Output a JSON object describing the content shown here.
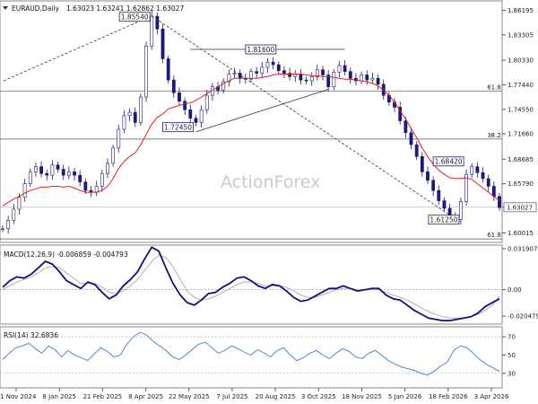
{
  "chart_data": [
    {
      "type": "candlestick",
      "panel": "price",
      "title": "EURAUD,Daily",
      "ohlc_readout": "1.63023 1.63241 1.62862 1.63027",
      "watermark": "ActionForex",
      "current_price": "1.63027",
      "ylim": [
        1.59,
        1.872
      ],
      "yticks": [
        "1.86195",
        "1.83305",
        "1.80330",
        "1.77440",
        "1.74550",
        "1.71660",
        "1.68685",
        "1.65790",
        "1.63027",
        "1.60015"
      ],
      "xticks": [
        "21 Nov 2024",
        "8 Jan 2025",
        "21 Feb 2025",
        "8 Apr 2025",
        "22 May 2025",
        "7 Jul 2025",
        "20 Aug 2025",
        "3 Oct 2025",
        "18 Nov 2025",
        "5 Jan 2026",
        "18 Feb 2026",
        "3 Apr 2026"
      ],
      "key_levels": [
        {
          "label": "1.85540",
          "value": 1.8554
        },
        {
          "label": "1.81600",
          "value": 1.816
        },
        {
          "label": "1.72450",
          "value": 1.7245
        },
        {
          "label": "1.68420",
          "value": 1.6842
        },
        {
          "label": "1.61250",
          "value": 1.6125
        }
      ],
      "fib_levels": [
        {
          "label": "61.8",
          "value": 1.767
        },
        {
          "label": "38.2",
          "value": 1.7105
        },
        {
          "label": "61.8",
          "value": 1.593
        }
      ],
      "close_series": [
        1.605,
        1.615,
        1.628,
        1.642,
        1.658,
        1.672,
        1.678,
        1.67,
        1.668,
        1.68,
        1.675,
        1.668,
        1.672,
        1.668,
        1.66,
        1.65,
        1.648,
        1.655,
        1.67,
        1.682,
        1.7,
        1.722,
        1.738,
        1.742,
        1.73,
        1.76,
        1.82,
        1.855,
        1.84,
        1.805,
        1.78,
        1.765,
        1.755,
        1.745,
        1.735,
        1.73,
        1.745,
        1.762,
        1.772,
        1.768,
        1.778,
        1.787,
        1.788,
        1.782,
        1.781,
        1.79,
        1.788,
        1.795,
        1.801,
        1.798,
        1.791,
        1.788,
        1.784,
        1.787,
        1.78,
        1.779,
        1.784,
        1.792,
        1.786,
        1.772,
        1.789,
        1.797,
        1.79,
        1.782,
        1.779,
        1.786,
        1.78,
        1.782,
        1.775,
        1.762,
        1.754,
        1.748,
        1.732,
        1.718,
        1.704,
        1.69,
        1.672,
        1.662,
        1.65,
        1.638,
        1.629,
        1.618,
        1.616,
        1.637,
        1.669,
        1.678,
        1.671,
        1.664,
        1.655,
        1.643,
        1.63
      ],
      "ma_series": [
        1.632,
        1.636,
        1.64,
        1.643,
        1.647,
        1.65,
        1.652,
        1.654,
        1.654,
        1.655,
        1.655,
        1.654,
        1.655,
        1.653,
        1.65,
        1.648,
        1.648,
        1.648,
        1.65,
        1.655,
        1.664,
        1.676,
        1.684,
        1.69,
        1.694,
        1.704,
        1.716,
        1.728,
        1.736,
        1.74,
        1.746,
        1.748,
        1.75,
        1.752,
        1.753,
        1.756,
        1.76,
        1.764,
        1.768,
        1.772,
        1.776,
        1.779,
        1.782,
        1.782,
        1.782,
        1.782,
        1.782,
        1.783,
        1.784,
        1.786,
        1.787,
        1.787,
        1.787,
        1.787,
        1.787,
        1.786,
        1.785,
        1.785,
        1.784,
        1.784,
        1.783,
        1.782,
        1.781,
        1.781,
        1.78,
        1.779,
        1.778,
        1.776,
        1.773,
        1.768,
        1.762,
        1.754,
        1.744,
        1.734,
        1.723,
        1.712,
        1.7,
        1.69,
        1.681,
        1.674,
        1.669,
        1.665,
        1.664,
        1.664,
        1.665,
        1.663,
        1.658,
        1.653,
        1.648,
        1.643,
        1.638
      ]
    },
    {
      "type": "line",
      "panel": "macd",
      "title": "MACD(12,26,9) -0.006859 -0.004793",
      "ylim": [
        -0.026,
        0.034
      ],
      "yticks": [
        "0.031907",
        "0.00",
        "-0.020479"
      ],
      "macd_series": [
        0.002,
        0.007,
        0.01,
        0.009,
        0.012,
        0.017,
        0.022,
        0.02,
        0.014,
        0.007,
        0.004,
        0.001,
        0.006,
        0.004,
        -0.002,
        -0.007,
        -0.004,
        0.003,
        0.008,
        0.014,
        0.024,
        0.033,
        0.03,
        0.017,
        0.005,
        -0.004,
        -0.01,
        -0.012,
        -0.008,
        -0.003,
        -0.002,
        0.002,
        0.005,
        0.009,
        0.01,
        0.007,
        0.003,
        0.001,
        0.004,
        0.003,
        -0.001,
        -0.006,
        -0.009,
        -0.008,
        -0.005,
        -0.002,
        0.001,
        0.001,
        0.003,
        0.001,
        -0.001,
        0.0,
        0.001,
        0.001,
        -0.004,
        -0.007,
        -0.008,
        -0.012,
        -0.016,
        -0.019,
        -0.022,
        -0.023,
        -0.024,
        -0.024,
        -0.023,
        -0.022,
        -0.021,
        -0.018,
        -0.013,
        -0.01,
        -0.007
      ],
      "signal_series": [
        0.0,
        0.003,
        0.006,
        0.008,
        0.01,
        0.013,
        0.017,
        0.018,
        0.017,
        0.013,
        0.009,
        0.005,
        0.005,
        0.005,
        0.002,
        -0.002,
        -0.003,
        -0.001,
        0.003,
        0.008,
        0.015,
        0.022,
        0.027,
        0.025,
        0.018,
        0.008,
        -0.001,
        -0.006,
        -0.008,
        -0.007,
        -0.005,
        -0.002,
        0.001,
        0.004,
        0.006,
        0.006,
        0.005,
        0.003,
        0.003,
        0.003,
        0.002,
        -0.001,
        -0.004,
        -0.006,
        -0.006,
        -0.004,
        -0.002,
        0.0,
        0.001,
        0.001,
        0.0,
        0.0,
        0.0,
        0.0,
        -0.002,
        -0.004,
        -0.006,
        -0.008,
        -0.011,
        -0.014,
        -0.017,
        -0.019,
        -0.021,
        -0.022,
        -0.022,
        -0.022,
        -0.021,
        -0.019,
        -0.016,
        -0.012,
        -0.005
      ]
    },
    {
      "type": "line",
      "panel": "rsi",
      "title": "RSI(14) 32.6836",
      "ylim": [
        15,
        80
      ],
      "yticks": [
        "70",
        "50",
        "30"
      ],
      "rsi_series": [
        45,
        52,
        58,
        60,
        63,
        57,
        52,
        60,
        56,
        48,
        55,
        50,
        47,
        44,
        51,
        58,
        54,
        48,
        50,
        62,
        70,
        75,
        72,
        65,
        60,
        55,
        48,
        45,
        50,
        56,
        62,
        64,
        58,
        52,
        55,
        60,
        57,
        53,
        50,
        56,
        52,
        48,
        55,
        58,
        50,
        44,
        47,
        52,
        55,
        50,
        46,
        52,
        57,
        54,
        48,
        46,
        52,
        55,
        50,
        44,
        40,
        37,
        35,
        33,
        30,
        28,
        32,
        38,
        42,
        55,
        60,
        58,
        52,
        45,
        40,
        36,
        32
      ]
    }
  ]
}
